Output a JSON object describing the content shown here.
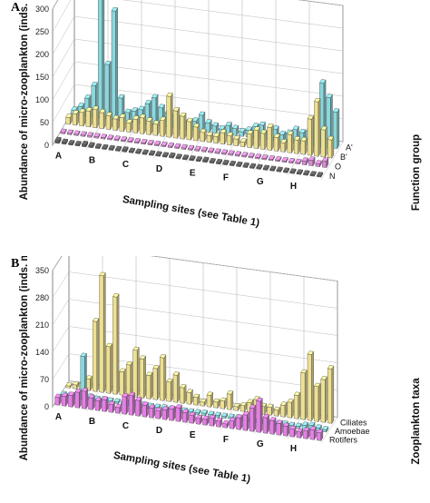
{
  "chart_data": [
    {
      "panel": "A",
      "type": "bar",
      "title": "",
      "ylabel": "Abundance of micro-zooplankton (inds. mL⁻¹)",
      "xlabel": "Sampling sites (see Table 1)",
      "zlabel": "Function group",
      "ylim": [
        0,
        300
      ],
      "yticks": [
        "0",
        "50",
        "100",
        "150",
        "200",
        "250",
        "300"
      ],
      "sites": [
        "A",
        "B",
        "C",
        "D",
        "E",
        "F",
        "G",
        "H"
      ],
      "series": [
        {
          "name": "N",
          "color": "#606060",
          "values": [
            6,
            4,
            3,
            3,
            5,
            4,
            3,
            2,
            2,
            3,
            4,
            3,
            3,
            2,
            3,
            2,
            3,
            4,
            3,
            3,
            2,
            3,
            4,
            3,
            3,
            2,
            2,
            3,
            3,
            2,
            2,
            3,
            2,
            2,
            3,
            2,
            3,
            2,
            2,
            2
          ]
        },
        {
          "name": "O",
          "color": "#d98ad6",
          "values": [
            2,
            3,
            2,
            2,
            2,
            3,
            2,
            2,
            2,
            2,
            2,
            2,
            3,
            2,
            2,
            2,
            2,
            3,
            2,
            2,
            2,
            2,
            2,
            2,
            2,
            2,
            2,
            2,
            3,
            2,
            2,
            2,
            2,
            2,
            2,
            2,
            8,
            12,
            6,
            14
          ]
        },
        {
          "name": "B'",
          "color": "#eee092",
          "values": [
            15,
            25,
            30,
            35,
            40,
            35,
            30,
            25,
            30,
            20,
            30,
            35,
            30,
            25,
            35,
            90,
            60,
            50,
            40,
            30,
            20,
            15,
            15,
            25,
            20,
            15,
            10,
            30,
            40,
            35,
            50,
            30,
            20,
            40,
            30,
            30,
            80,
            120,
            60,
            40
          ]
        },
        {
          "name": "A'",
          "color": "#8ad8de",
          "values": [
            10,
            20,
            40,
            70,
            290,
            120,
            240,
            50,
            20,
            25,
            30,
            45,
            60,
            40,
            30,
            25,
            20,
            15,
            20,
            35,
            20,
            15,
            10,
            20,
            15,
            10,
            15,
            25,
            30,
            15,
            25,
            15,
            20,
            30,
            25,
            30,
            60,
            140,
            110,
            80
          ]
        }
      ]
    },
    {
      "panel": "B",
      "type": "bar",
      "title": "",
      "ylabel": "Abundance of micro-zooplankton (inds. mL⁻¹)",
      "xlabel": "Sampling sites (see Table 1)",
      "zlabel": "Zooplankton taxa",
      "ylim": [
        0,
        350
      ],
      "yticks": [
        "0",
        "70",
        "140",
        "210",
        "280",
        "350"
      ],
      "sites": [
        "A",
        "B",
        "C",
        "D",
        "E",
        "F",
        "G",
        "H"
      ],
      "series": [
        {
          "name": "Rotifers",
          "color": "#e47fe4",
          "values": [
            20,
            25,
            30,
            40,
            45,
            30,
            25,
            30,
            20,
            15,
            45,
            50,
            40,
            30,
            25,
            20,
            25,
            30,
            35,
            25,
            20,
            15,
            15,
            20,
            15,
            10,
            20,
            30,
            40,
            60,
            80,
            40,
            35,
            30,
            25,
            20,
            15,
            20,
            25,
            20
          ]
        },
        {
          "name": "Amoebae",
          "color": "#8ad8de",
          "values": [
            5,
            5,
            10,
            110,
            8,
            5,
            6,
            5,
            5,
            6,
            8,
            10,
            6,
            5,
            5,
            6,
            5,
            6,
            5,
            5,
            5,
            6,
            5,
            5,
            5,
            5,
            6,
            5,
            5,
            5,
            6,
            5,
            5,
            6,
            5,
            5,
            10,
            12,
            8,
            6
          ]
        },
        {
          "name": "Ciliates",
          "color": "#eee092",
          "values": [
            5,
            10,
            15,
            30,
            180,
            300,
            120,
            250,
            60,
            80,
            120,
            100,
            60,
            80,
            110,
            50,
            70,
            40,
            30,
            20,
            10,
            30,
            15,
            20,
            40,
            10,
            15,
            25,
            35,
            20,
            20,
            15,
            30,
            40,
            60,
            120,
            170,
            90,
            110,
            140
          ]
        }
      ]
    }
  ]
}
